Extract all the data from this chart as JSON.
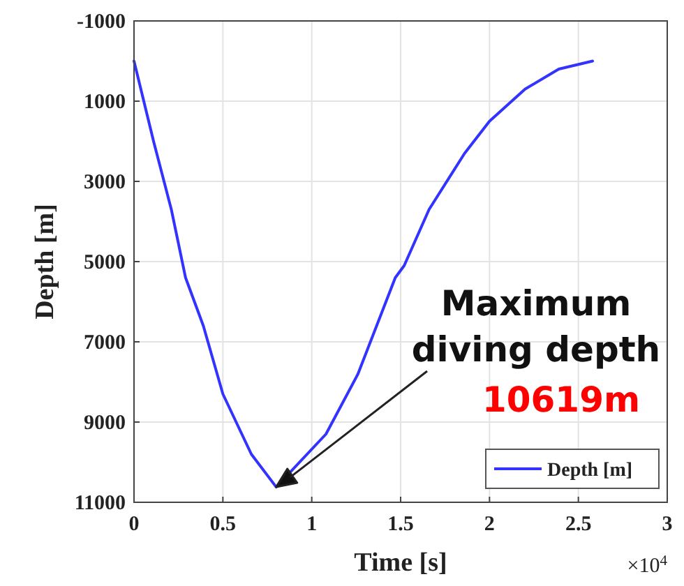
{
  "chart_data": {
    "type": "line",
    "xlabel": "Time [s]",
    "ylabel": "Depth [m]",
    "x": [
      0,
      0.11,
      0.21,
      0.29,
      0.39,
      0.5,
      0.66,
      0.8,
      1.08,
      1.26,
      1.47,
      1.52,
      1.66,
      1.86,
      2.0,
      2.2,
      2.39,
      2.58
    ],
    "series": [
      {
        "name": "Depth [m]",
        "color": "#3333ff",
        "values": [
          0,
          2000,
          3700,
          5400,
          6600,
          8300,
          9800,
          10619,
          9300,
          7800,
          5400,
          5100,
          3700,
          2300,
          1500,
          700,
          200,
          0
        ]
      }
    ],
    "xlim": [
      0,
      3
    ],
    "xticks": [
      0,
      0.5,
      1,
      1.5,
      2,
      2.5,
      3
    ],
    "ylim": [
      11000,
      -1000
    ],
    "yticks": [
      -1000,
      1000,
      3000,
      5000,
      7000,
      9000,
      11000
    ],
    "grid": true,
    "legend": "bottom right",
    "line_style": "solid",
    "marker": "none",
    "annotations": [
      "Maximum diving depth",
      "10619m",
      "×10$^{4}$"
    ]
  }
}
